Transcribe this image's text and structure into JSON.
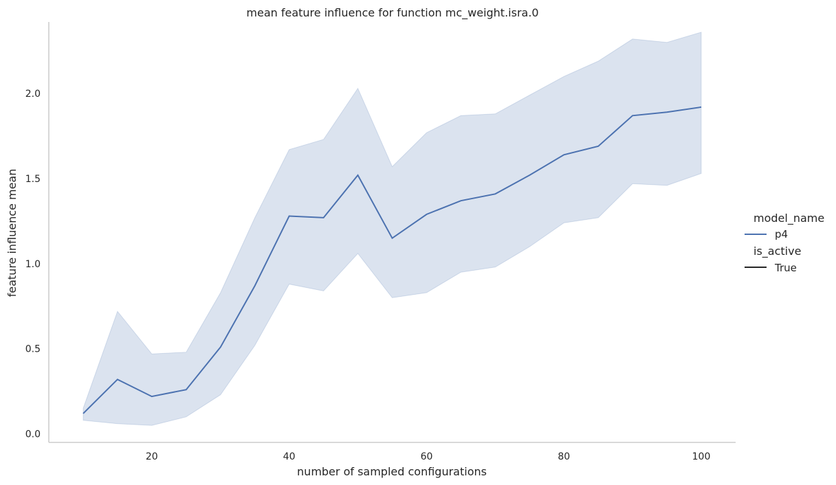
{
  "chart_data": {
    "type": "line",
    "title": "mean feature influence for function mc_weight.isra.0",
    "xlabel": "number of sampled configurations",
    "ylabel": "feature influence mean",
    "xlim": [
      5,
      105
    ],
    "ylim": [
      -0.05,
      2.42
    ],
    "xticks": [
      20,
      40,
      60,
      80,
      100
    ],
    "yticks": [
      0.0,
      0.5,
      1.0,
      1.5,
      2.0
    ],
    "xtick_labels": [
      "20",
      "40",
      "60",
      "80",
      "100"
    ],
    "ytick_labels": [
      "0.0",
      "0.5",
      "1.0",
      "1.5",
      "2.0"
    ],
    "grid": false,
    "legend_placement": "right",
    "x": [
      10,
      15,
      20,
      25,
      30,
      35,
      40,
      45,
      50,
      55,
      60,
      65,
      70,
      75,
      80,
      85,
      90,
      95,
      100
    ],
    "series": [
      {
        "name": "p4",
        "color": "#4c72b0",
        "values": [
          0.12,
          0.32,
          0.22,
          0.26,
          0.51,
          0.87,
          1.28,
          1.27,
          1.52,
          1.15,
          1.29,
          1.37,
          1.41,
          1.52,
          1.64,
          1.69,
          1.87,
          1.89,
          1.92
        ],
        "ci_upper": [
          0.15,
          0.72,
          0.47,
          0.48,
          0.83,
          1.27,
          1.67,
          1.73,
          2.03,
          1.57,
          1.77,
          1.87,
          1.88,
          1.99,
          2.1,
          2.19,
          2.32,
          2.3,
          2.36
        ],
        "ci_lower": [
          0.08,
          0.06,
          0.05,
          0.1,
          0.23,
          0.52,
          0.88,
          0.84,
          1.06,
          0.8,
          0.83,
          0.95,
          0.98,
          1.1,
          1.24,
          1.27,
          1.47,
          1.46,
          1.53
        ]
      }
    ],
    "legend": {
      "hue_title": "model_name",
      "hue_entries": [
        {
          "label": "p4",
          "color": "#4c72b0"
        }
      ],
      "style_title": "is_active",
      "style_entries": [
        {
          "label": "True",
          "color": "#262626"
        }
      ]
    }
  }
}
